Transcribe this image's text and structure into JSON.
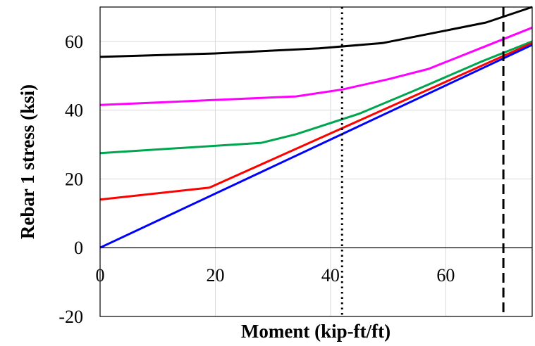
{
  "chart_data": {
    "type": "line",
    "title": "",
    "xlabel": "Moment (kip-ft/ft)",
    "ylabel": "Rebar 1 stress (ksi)",
    "xlim": [
      0,
      75
    ],
    "ylim": [
      -20,
      70
    ],
    "xticks": [
      0,
      20,
      40,
      60
    ],
    "yticks": [
      -20,
      0,
      20,
      40,
      60
    ],
    "grid": true,
    "legend": "none",
    "series": [
      {
        "color": "#000000",
        "x": [
          0,
          20,
          38,
          49,
          58,
          67,
          75
        ],
        "y": [
          55.5,
          56.5,
          58,
          59.5,
          62.5,
          65.5,
          70
        ]
      },
      {
        "color": "#ff00ff",
        "x": [
          0,
          34,
          42,
          50,
          57,
          66,
          75
        ],
        "y": [
          41.5,
          44,
          46,
          49,
          52,
          58,
          64
        ]
      },
      {
        "color": "#00a550",
        "x": [
          0,
          28,
          34,
          45,
          55,
          66,
          75
        ],
        "y": [
          27.5,
          30.5,
          33,
          39,
          46,
          54,
          60
        ]
      },
      {
        "color": "#ff0000",
        "x": [
          0,
          19,
          75
        ],
        "y": [
          14,
          17.5,
          59.5
        ]
      },
      {
        "color": "#0000ff",
        "x": [
          0,
          75
        ],
        "y": [
          0,
          59
        ]
      }
    ],
    "vlines": [
      {
        "x": 42,
        "style": "dotted"
      },
      {
        "x": 70,
        "style": "dashed"
      }
    ]
  }
}
